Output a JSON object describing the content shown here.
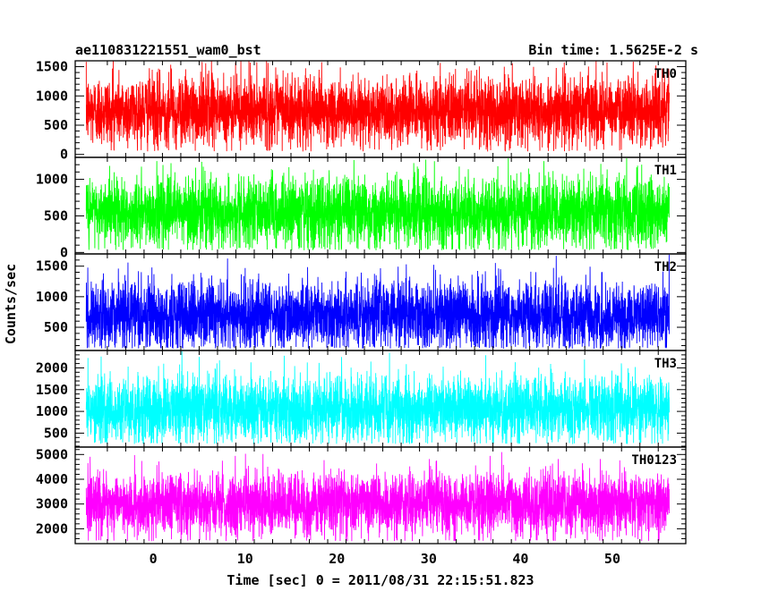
{
  "header": {
    "title": "ae110831221551_wam0_bst",
    "bin_time": "Bin time: 1.5625E-2 s"
  },
  "chart_data": {
    "type": "line",
    "xlabel": "Time [sec] 0 = 2011/08/31 22:15:51.823",
    "ylabel": "Counts/sec",
    "xlim": [
      -8.5,
      58
    ],
    "x_ticks": [
      0,
      10,
      20,
      30,
      40,
      50
    ],
    "x_start": -7.3,
    "x_end": 56.2,
    "x_step": 0.015625,
    "panels": [
      {
        "name": "TH0",
        "color": "#ff0000",
        "ylim": [
          -50,
          1600
        ],
        "y_ticks": [
          0,
          500,
          1000,
          1500
        ],
        "mean": 750,
        "sigma": 300,
        "data_min": 50,
        "data_max": 1600
      },
      {
        "name": "TH1",
        "color": "#00ff00",
        "ylim": [
          -20,
          1300
        ],
        "y_ticks": [
          0,
          500,
          1000
        ],
        "mean": 550,
        "sigma": 240,
        "data_min": 30,
        "data_max": 1300
      },
      {
        "name": "TH2",
        "color": "#0000ff",
        "ylim": [
          120,
          1700
        ],
        "y_ticks": [
          500,
          1000,
          1500
        ],
        "mean": 700,
        "sigma": 280,
        "data_min": 150,
        "data_max": 1700
      },
      {
        "name": "TH3",
        "color": "#00ffff",
        "ylim": [
          180,
          2400
        ],
        "y_ticks": [
          500,
          1000,
          1500,
          2000
        ],
        "mean": 1050,
        "sigma": 380,
        "data_min": 250,
        "data_max": 2400
      },
      {
        "name": "TH0123",
        "color": "#ff00ff",
        "ylim": [
          1400,
          5300
        ],
        "y_ticks": [
          2000,
          3000,
          4000,
          5000
        ],
        "mean": 3000,
        "sigma": 620,
        "data_min": 1500,
        "data_max": 5200
      }
    ]
  }
}
